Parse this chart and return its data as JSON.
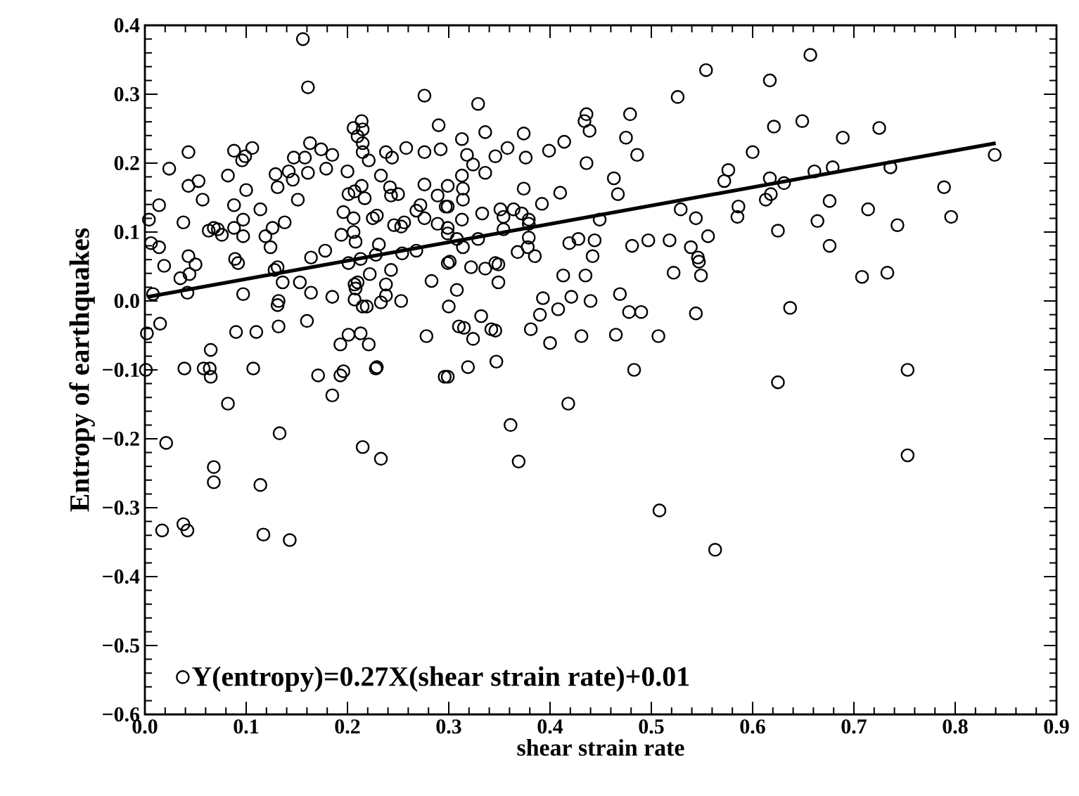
{
  "chart_data": {
    "type": "scatter",
    "xlabel": "shear strain rate",
    "ylabel": "Entropy of earthquakes",
    "xlim": [
      0,
      0.9
    ],
    "ylim": [
      -0.6,
      0.4
    ],
    "xticks": [
      {
        "value": 0,
        "label": "0.0"
      },
      {
        "value": 0.1,
        "label": "0.1"
      },
      {
        "value": 0.2,
        "label": "0.2"
      },
      {
        "value": 0.3,
        "label": "0.3"
      },
      {
        "value": 0.4,
        "label": "0.4"
      },
      {
        "value": 0.5,
        "label": "0.5"
      },
      {
        "value": 0.6,
        "label": "0.6"
      },
      {
        "value": 0.7,
        "label": "0.7"
      },
      {
        "value": 0.8,
        "label": "0.8"
      },
      {
        "value": 0.9,
        "label": "0.9"
      }
    ],
    "yticks": [
      {
        "value": -0.6,
        "label": "−0.6"
      },
      {
        "value": -0.5,
        "label": "−0.5"
      },
      {
        "value": -0.4,
        "label": "−0.4"
      },
      {
        "value": -0.3,
        "label": "−0.3"
      },
      {
        "value": -0.2,
        "label": "−0.2"
      },
      {
        "value": -0.1,
        "label": "−0.1"
      },
      {
        "value": 0,
        "label": "0.0"
      },
      {
        "value": 0.1,
        "label": "0.1"
      },
      {
        "value": 0.2,
        "label": "0.2"
      },
      {
        "value": 0.3,
        "label": "0.3"
      },
      {
        "value": 0.4,
        "label": "0.4"
      }
    ],
    "legend": "bottom left",
    "grid": false,
    "series": [
      {
        "name": "Y(entropy)=0.27X(shear strain rate)+0.01",
        "marker": "circle",
        "color": "#000000",
        "x": [
          0.657,
          0.617,
          0.621,
          0.649,
          0.689,
          0.725,
          0.6,
          0.839,
          0.736,
          0.679,
          0.661,
          0.617,
          0.631,
          0.618,
          0.613,
          0.789,
          0.676,
          0.714,
          0.664,
          0.743,
          0.796,
          0.625,
          0.676,
          0.708,
          0.733,
          0.637,
          0.753,
          0.753,
          0.625,
          0.554,
          0.526,
          0.329,
          0.436,
          0.434,
          0.439,
          0.479,
          0.336,
          0.313,
          0.374,
          0.475,
          0.414,
          0.399,
          0.358,
          0.318,
          0.346,
          0.376,
          0.486,
          0.436,
          0.324,
          0.336,
          0.313,
          0.576,
          0.572,
          0.463,
          0.314,
          0.299,
          0.374,
          0.41,
          0.467,
          0.314,
          0.392,
          0.299,
          0.351,
          0.364,
          0.333,
          0.372,
          0.313,
          0.354,
          0.379,
          0.586,
          0.529,
          0.585,
          0.544,
          0.449,
          0.299,
          0.354,
          0.379,
          0.329,
          0.379,
          0.556,
          0.419,
          0.428,
          0.444,
          0.497,
          0.518,
          0.308,
          0.314,
          0.481,
          0.539,
          0.378,
          0.368,
          0.385,
          0.442,
          0.546,
          0.547,
          0.301,
          0.346,
          0.349,
          0.322,
          0.336,
          0.349,
          0.413,
          0.435,
          0.522,
          0.549,
          0.308,
          0.3,
          0.393,
          0.421,
          0.44,
          0.469,
          0.408,
          0.39,
          0.478,
          0.49,
          0.544,
          0.332,
          0.31,
          0.315,
          0.342,
          0.346,
          0.381,
          0.324,
          0.4,
          0.431,
          0.465,
          0.507,
          0.319,
          0.347,
          0.483,
          0.299,
          0.361,
          0.369,
          0.418,
          0.508,
          0.563,
          0.156,
          0.161,
          0.276,
          0.29,
          0.292,
          0.276,
          0.206,
          0.214,
          0.215,
          0.21,
          0.215,
          0.215,
          0.221,
          0.238,
          0.244,
          0.258,
          0.163,
          0.174,
          0.185,
          0.106,
          0.088,
          0.099,
          0.096,
          0.043,
          0.024,
          0.053,
          0.043,
          0.057,
          0.082,
          0.1,
          0.129,
          0.131,
          0.142,
          0.146,
          0.147,
          0.158,
          0.161,
          0.151,
          0.179,
          0.2,
          0.207,
          0.214,
          0.217,
          0.201,
          0.242,
          0.243,
          0.25,
          0.233,
          0.276,
          0.272,
          0.268,
          0.289,
          0.297,
          0.289,
          0.299,
          0.276,
          0.256,
          0.253,
          0.246,
          0.229,
          0.225,
          0.196,
          0.206,
          0.206,
          0.208,
          0.194,
          0.231,
          0.213,
          0.201,
          0.228,
          0.243,
          0.222,
          0.254,
          0.268,
          0.299,
          0.283,
          0.238,
          0.238,
          0.253,
          0.233,
          0.215,
          0.219,
          0.207,
          0.21,
          0.208,
          0.207,
          0.178,
          0.164,
          0.138,
          0.126,
          0.119,
          0.124,
          0.097,
          0.097,
          0.114,
          0.088,
          0.088,
          0.076,
          0.068,
          0.063,
          0.072,
          0.038,
          0.014,
          0.004,
          0.006,
          0.014,
          0.019,
          0.043,
          0.05,
          0.044,
          0.035,
          0.042,
          0.089,
          0.092,
          0.097,
          0.131,
          0.128,
          0.136,
          0.153,
          0.132,
          0.131,
          0.164,
          0.185,
          0.16,
          0.132,
          0.11,
          0.09,
          0.065,
          0.015,
          0.008,
          0.002,
          0.193,
          0.201,
          0.213,
          0.221,
          0.229,
          0.278,
          0.001,
          0.039,
          0.058,
          0.064,
          0.065,
          0.107,
          0.171,
          0.185,
          0.193,
          0.196,
          0.228,
          0.296,
          0.082,
          0.021,
          0.133,
          0.215,
          0.233,
          0.068,
          0.068,
          0.114,
          0.038,
          0.042,
          0.017,
          0.117,
          0.143
        ],
        "values": [
          0.357,
          0.32,
          0.253,
          0.261,
          0.237,
          0.251,
          0.216,
          0.212,
          0.194,
          0.194,
          0.188,
          0.178,
          0.171,
          0.155,
          0.147,
          0.165,
          0.145,
          0.133,
          0.116,
          0.11,
          0.122,
          0.102,
          0.08,
          0.035,
          0.041,
          -0.01,
          -0.1,
          -0.224,
          -0.118,
          0.335,
          0.296,
          0.286,
          0.271,
          0.261,
          0.247,
          0.271,
          0.245,
          0.235,
          0.243,
          0.237,
          0.231,
          0.218,
          0.222,
          0.212,
          0.21,
          0.208,
          0.212,
          0.2,
          0.198,
          0.186,
          0.182,
          0.19,
          0.174,
          0.178,
          0.163,
          0.167,
          0.163,
          0.157,
          0.155,
          0.147,
          0.141,
          0.137,
          0.133,
          0.133,
          0.127,
          0.127,
          0.118,
          0.122,
          0.118,
          0.137,
          0.133,
          0.122,
          0.12,
          0.118,
          0.106,
          0.104,
          0.112,
          0.09,
          0.092,
          0.094,
          0.084,
          0.09,
          0.088,
          0.088,
          0.088,
          0.09,
          0.078,
          0.08,
          0.078,
          0.078,
          0.071,
          0.065,
          0.065,
          0.063,
          0.057,
          0.057,
          0.055,
          0.053,
          0.049,
          0.047,
          0.027,
          0.037,
          0.037,
          0.041,
          0.037,
          0.016,
          -0.008,
          0.004,
          0.006,
          0.0,
          0.01,
          -0.012,
          -0.02,
          -0.016,
          -0.016,
          -0.018,
          -0.022,
          -0.037,
          -0.039,
          -0.041,
          -0.043,
          -0.041,
          -0.055,
          -0.061,
          -0.051,
          -0.049,
          -0.051,
          -0.096,
          -0.088,
          -0.1,
          -0.11,
          -0.18,
          -0.233,
          -0.149,
          -0.304,
          -0.361,
          0.38,
          0.31,
          0.298,
          0.255,
          0.22,
          0.216,
          0.251,
          0.261,
          0.249,
          0.239,
          0.229,
          0.216,
          0.204,
          0.216,
          0.208,
          0.222,
          0.229,
          0.22,
          0.212,
          0.222,
          0.218,
          0.21,
          0.204,
          0.216,
          0.192,
          0.174,
          0.167,
          0.147,
          0.182,
          0.161,
          0.184,
          0.165,
          0.188,
          0.176,
          0.208,
          0.208,
          0.186,
          0.147,
          0.192,
          0.188,
          0.159,
          0.167,
          0.149,
          0.155,
          0.165,
          0.153,
          0.155,
          0.182,
          0.169,
          0.139,
          0.131,
          0.153,
          0.137,
          0.112,
          0.098,
          0.12,
          0.114,
          0.108,
          0.11,
          0.124,
          0.12,
          0.129,
          0.12,
          0.1,
          0.086,
          0.096,
          0.082,
          0.061,
          0.055,
          0.067,
          0.045,
          0.039,
          0.069,
          0.073,
          0.055,
          0.029,
          0.024,
          0.008,
          0.0,
          -0.002,
          -0.008,
          -0.008,
          0.024,
          0.027,
          0.018,
          0.002,
          0.073,
          0.063,
          0.114,
          0.106,
          0.094,
          0.078,
          0.094,
          0.118,
          0.133,
          0.139,
          0.106,
          0.096,
          0.106,
          0.102,
          0.104,
          0.114,
          0.139,
          0.118,
          0.084,
          0.078,
          0.051,
          0.065,
          0.053,
          0.039,
          0.033,
          0.012,
          0.061,
          0.055,
          0.01,
          0.049,
          0.045,
          0.027,
          0.027,
          0.0,
          -0.006,
          0.012,
          0.006,
          -0.029,
          -0.037,
          -0.045,
          -0.045,
          -0.071,
          -0.033,
          0.01,
          -0.047,
          -0.063,
          -0.049,
          -0.047,
          -0.063,
          -0.096,
          -0.051,
          -0.1,
          -0.098,
          -0.098,
          -0.098,
          -0.11,
          -0.098,
          -0.108,
          -0.137,
          -0.108,
          -0.102,
          -0.098,
          -0.11,
          -0.149,
          -0.206,
          -0.192,
          -0.212,
          -0.229,
          -0.241,
          -0.263,
          -0.267,
          -0.324,
          -0.333,
          -0.333,
          -0.339,
          -0.347
        ]
      },
      {
        "type": "line",
        "line_style": "solid",
        "color": "#000000",
        "x": [
          0.003,
          0.84
        ],
        "values": [
          0.006,
          0.229
        ]
      }
    ]
  }
}
